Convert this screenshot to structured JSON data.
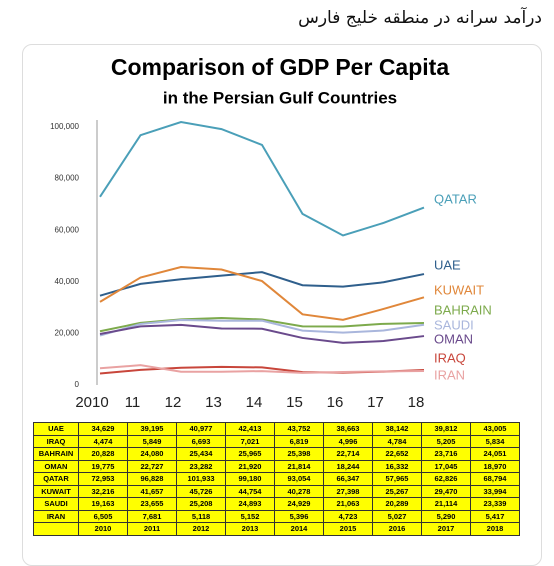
{
  "header": {
    "title": "درآمد سرانه در منطقه خلیج فارس"
  },
  "chart_data": {
    "type": "line",
    "title": "Comparison of GDP Per Capita",
    "subtitle": "in the Persian Gulf Countries",
    "x": [
      2010,
      2011,
      2012,
      2013,
      2014,
      2015,
      2016,
      2017,
      2018
    ],
    "xlim": [
      2010,
      2018
    ],
    "xticks": [
      {
        "value": 2010,
        "label": "2010"
      },
      {
        "value": 2011,
        "label": "11"
      },
      {
        "value": 2012,
        "label": "12"
      },
      {
        "value": 2013,
        "label": "13"
      },
      {
        "value": 2014,
        "label": "14"
      },
      {
        "value": 2015,
        "label": "15"
      },
      {
        "value": 2016,
        "label": "16"
      },
      {
        "value": 2017,
        "label": "17"
      },
      {
        "value": 2018,
        "label": "18"
      }
    ],
    "ylim": [
      0,
      100000
    ],
    "yticks": [
      0,
      {
        "value": 20000,
        "label": "20,000"
      },
      {
        "value": 40000,
        "label": "40,000"
      },
      {
        "value": 60000,
        "label": "60,000"
      },
      {
        "value": 80000,
        "label": "80,000"
      },
      {
        "value": 100000,
        "label": "100,000"
      }
    ],
    "series": [
      {
        "name": "QATAR",
        "color": "#4a9fb8",
        "values": [
          72953,
          96828,
          101933,
          99180,
          93054,
          66347,
          57965,
          62826,
          68794
        ]
      },
      {
        "name": "UAE",
        "color": "#2f5f8c",
        "values": [
          34629,
          39195,
          40977,
          42413,
          43752,
          38663,
          38142,
          39812,
          43005
        ]
      },
      {
        "name": "KUWAIT",
        "color": "#e0873a",
        "values": [
          32216,
          41657,
          45726,
          44754,
          40278,
          27398,
          25267,
          29470,
          33994
        ]
      },
      {
        "name": "BAHRAIN",
        "color": "#7daa4c",
        "values": [
          20828,
          24080,
          25434,
          25965,
          25398,
          22714,
          22652,
          23716,
          24051
        ]
      },
      {
        "name": "SAUDI",
        "color": "#a9b6dc",
        "values": [
          19163,
          23655,
          25208,
          24893,
          24929,
          21063,
          20289,
          21114,
          23339
        ]
      },
      {
        "name": "OMAN",
        "color": "#6a4a8c",
        "values": [
          19775,
          22727,
          23282,
          21920,
          21814,
          18244,
          16332,
          17045,
          18970
        ]
      },
      {
        "name": "IRAQ",
        "color": "#c8463b",
        "values": [
          4474,
          5849,
          6693,
          7021,
          6819,
          4996,
          4784,
          5205,
          5834
        ]
      },
      {
        "name": "IRAN",
        "color": "#e9a2a2",
        "values": [
          6505,
          7681,
          5118,
          5152,
          5396,
          4723,
          5027,
          5290,
          5417
        ]
      }
    ]
  },
  "table": {
    "rows": [
      [
        "UAE",
        "34,629",
        "39,195",
        "40,977",
        "42,413",
        "43,752",
        "38,663",
        "38,142",
        "39,812",
        "43,005"
      ],
      [
        "IRAQ",
        "4,474",
        "5,849",
        "6,693",
        "7,021",
        "6,819",
        "4,996",
        "4,784",
        "5,205",
        "5,834"
      ],
      [
        "BAHRAIN",
        "20,828",
        "24,080",
        "25,434",
        "25,965",
        "25,398",
        "22,714",
        "22,652",
        "23,716",
        "24,051"
      ],
      [
        "OMAN",
        "19,775",
        "22,727",
        "23,282",
        "21,920",
        "21,814",
        "18,244",
        "16,332",
        "17,045",
        "18,970"
      ],
      [
        "QATAR",
        "72,953",
        "96,828",
        "101,933",
        "99,180",
        "93,054",
        "66,347",
        "57,965",
        "62,826",
        "68,794"
      ],
      [
        "KUWAIT",
        "32,216",
        "41,657",
        "45,726",
        "44,754",
        "40,278",
        "27,398",
        "25,267",
        "29,470",
        "33,994"
      ],
      [
        "SAUDI",
        "19,163",
        "23,655",
        "25,208",
        "24,893",
        "24,929",
        "21,063",
        "20,289",
        "21,114",
        "23,339"
      ],
      [
        "IRAN",
        "6,505",
        "7,681",
        "5,118",
        "5,152",
        "5,396",
        "4,723",
        "5,027",
        "5,290",
        "5,417"
      ]
    ],
    "footer": [
      "2010",
      "2011",
      "2012",
      "2013",
      "2014",
      "2015",
      "2016",
      "2017",
      "2018"
    ]
  }
}
